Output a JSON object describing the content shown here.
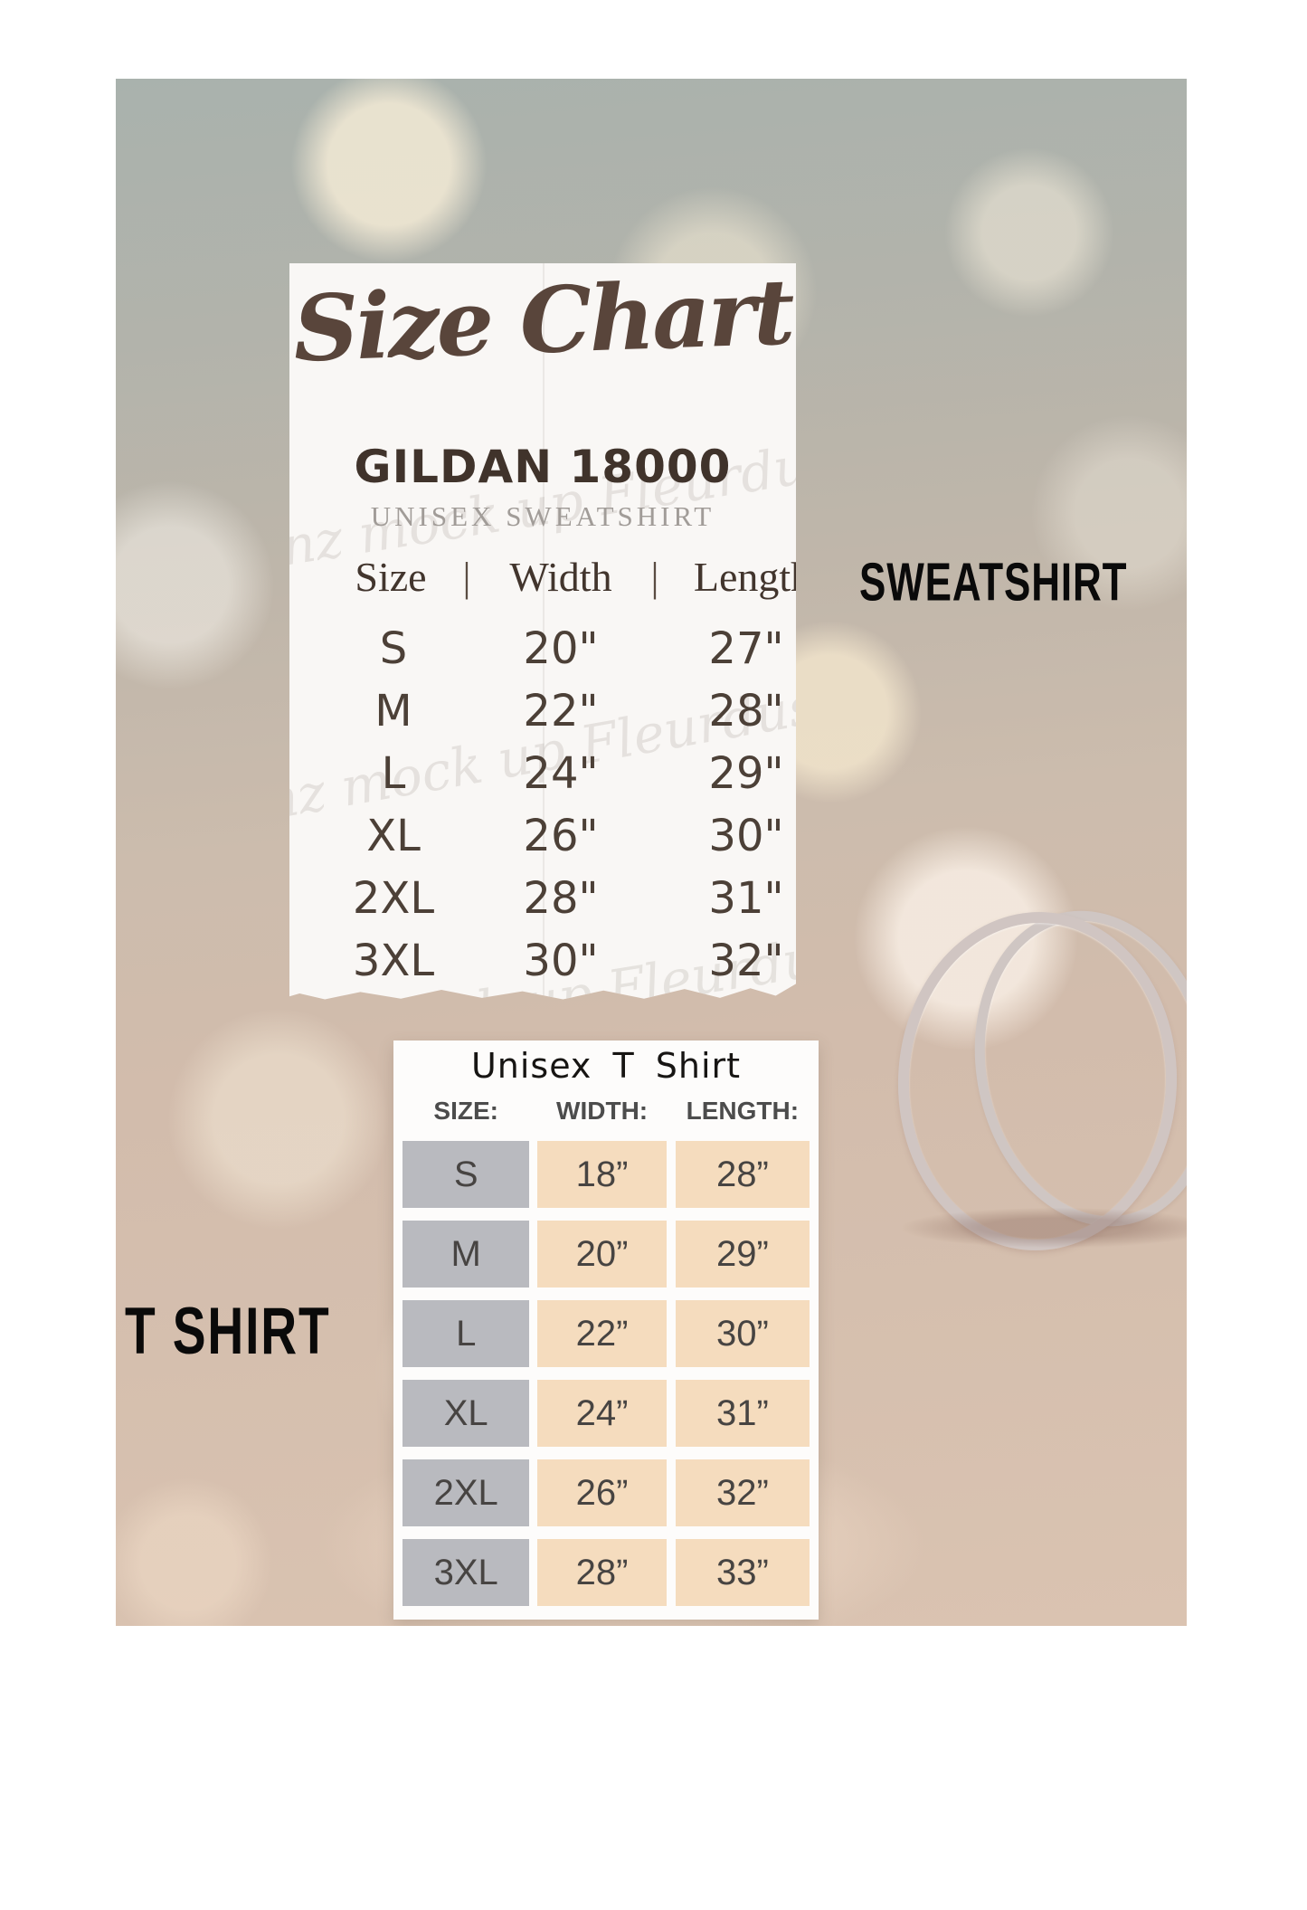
{
  "labels": {
    "sweatshirt": "SWEATSHIRT",
    "tshirt": "T SHIRT"
  },
  "sweatshirt_card": {
    "title": "Size Chart",
    "brand": "GILDAN 18000",
    "subtitle": "UNISEX SWEATSHIRT",
    "columns": [
      "Size",
      "Width",
      "Length"
    ],
    "separator": "|",
    "watermark": "gnz mock up Fleurdusoleil",
    "rows": [
      {
        "size": "S",
        "width": "20\"",
        "length": "27\""
      },
      {
        "size": "M",
        "width": "22\"",
        "length": "28\""
      },
      {
        "size": "L",
        "width": "24\"",
        "length": "29\""
      },
      {
        "size": "XL",
        "width": "26\"",
        "length": "30\""
      },
      {
        "size": "2XL",
        "width": "28\"",
        "length": "31\""
      },
      {
        "size": "3XL",
        "width": "30\"",
        "length": "32\""
      }
    ]
  },
  "tshirt_card": {
    "title": "Unisex T Shirt",
    "columns": [
      "SIZE:",
      "WIDTH:",
      "LENGTH:"
    ],
    "rows": [
      {
        "size": "S",
        "width": "18”",
        "length": "28”"
      },
      {
        "size": "M",
        "width": "20”",
        "length": "29”"
      },
      {
        "size": "L",
        "width": "22”",
        "length": "30”"
      },
      {
        "size": "XL",
        "width": "24”",
        "length": "31”"
      },
      {
        "size": "2XL",
        "width": "26”",
        "length": "32”"
      },
      {
        "size": "3XL",
        "width": "28”",
        "length": "33”"
      }
    ]
  },
  "colors": {
    "page_background": "#ffffff",
    "photo_top": "#a9b2ad",
    "photo_bottom": "#dac3b1",
    "bokeh_cream": "#f3ead5",
    "card_background": "#f9f7f5",
    "title_brown": "#59453b",
    "brand_brown": "#40332b",
    "subtitle_gray": "#a19c98",
    "table_text": "#4c4037",
    "label_black": "#0a0a0a",
    "tshirt_size_cell": "#b9babf",
    "tshirt_value_cell": "#f5dcbe",
    "ring_silver": "#d0c5c2"
  },
  "chart_data": [
    {
      "type": "table",
      "title": "GILDAN 18000 UNISEX SWEATSHIRT",
      "columns": [
        "Size",
        "Width",
        "Length"
      ],
      "rows": [
        [
          "S",
          "20\"",
          "27\""
        ],
        [
          "M",
          "22\"",
          "28\""
        ],
        [
          "L",
          "24\"",
          "29\""
        ],
        [
          "XL",
          "26\"",
          "30\""
        ],
        [
          "2XL",
          "28\"",
          "31\""
        ],
        [
          "3XL",
          "30\"",
          "32\""
        ]
      ]
    },
    {
      "type": "table",
      "title": "Unisex T Shirt",
      "columns": [
        "SIZE:",
        "WIDTH:",
        "LENGTH:"
      ],
      "rows": [
        [
          "S",
          "18”",
          "28”"
        ],
        [
          "M",
          "20”",
          "29”"
        ],
        [
          "L",
          "22”",
          "30”"
        ],
        [
          "XL",
          "24”",
          "31”"
        ],
        [
          "2XL",
          "26”",
          "32”"
        ],
        [
          "3XL",
          "28”",
          "33”"
        ]
      ]
    }
  ]
}
